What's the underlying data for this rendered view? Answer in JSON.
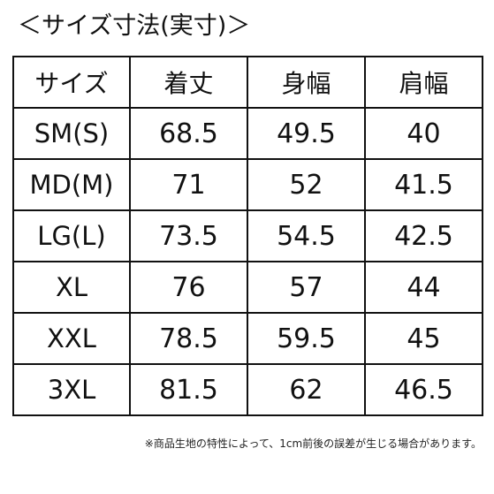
{
  "title": "＜サイズ寸法(実寸)＞",
  "table": {
    "headers": [
      "サイズ",
      "着丈",
      "身幅",
      "肩幅"
    ],
    "rows": [
      [
        "SM(S)",
        "68.5",
        "49.5",
        "40"
      ],
      [
        "MD(M)",
        "71",
        "52",
        "41.5"
      ],
      [
        "LG(L)",
        "73.5",
        "54.5",
        "42.5"
      ],
      [
        "XL",
        "76",
        "57",
        "44"
      ],
      [
        "XXL",
        "78.5",
        "59.5",
        "45"
      ],
      [
        "3XL",
        "81.5",
        "62",
        "46.5"
      ]
    ]
  },
  "note": "※商品生地の特性によって、1cm前後の誤差が生じる場合があります。",
  "colors": {
    "text": "#111111",
    "border": "#111111",
    "background": "#ffffff"
  }
}
